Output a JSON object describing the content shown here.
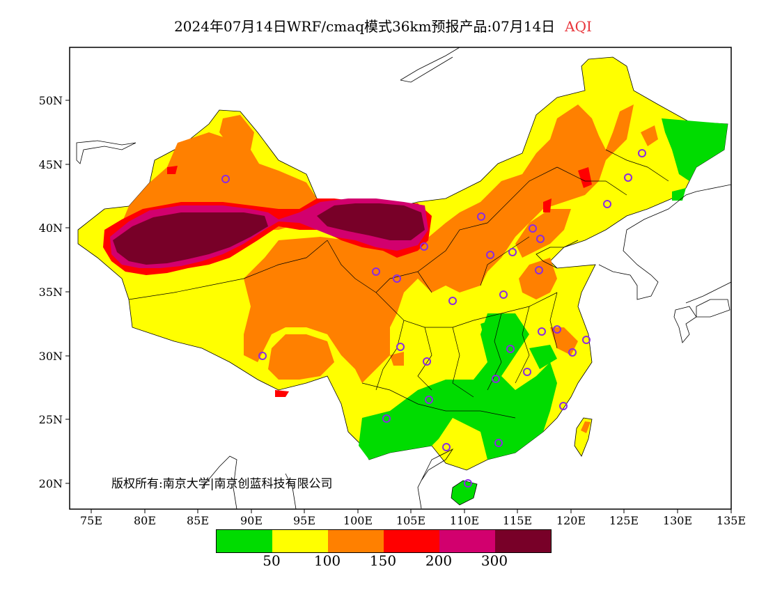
{
  "title": {
    "main": "2024年07月14日WRF/cmaq模式36km预报产品:07月14日",
    "variable": "AQI"
  },
  "axes": {
    "x_ticks": [
      "75E",
      "80E",
      "85E",
      "90E",
      "95E",
      "100E",
      "105E",
      "110E",
      "115E",
      "120E",
      "125E",
      "130E",
      "135E"
    ],
    "y_ticks": [
      "50N",
      "45N",
      "40N",
      "35N",
      "30N",
      "25N",
      "20N"
    ]
  },
  "legend": {
    "colors": [
      "#00dc00",
      "#ffff00",
      "#ff8000",
      "#ff0000",
      "#d2006e",
      "#780028"
    ],
    "labels": [
      "50",
      "100",
      "150",
      "200",
      "300"
    ]
  },
  "copyright": "版权所有:南京大学|南京创蓝科技有限公司",
  "colors": {
    "title_accent": "#e8363c",
    "station_marker": "#8a2be2"
  }
}
